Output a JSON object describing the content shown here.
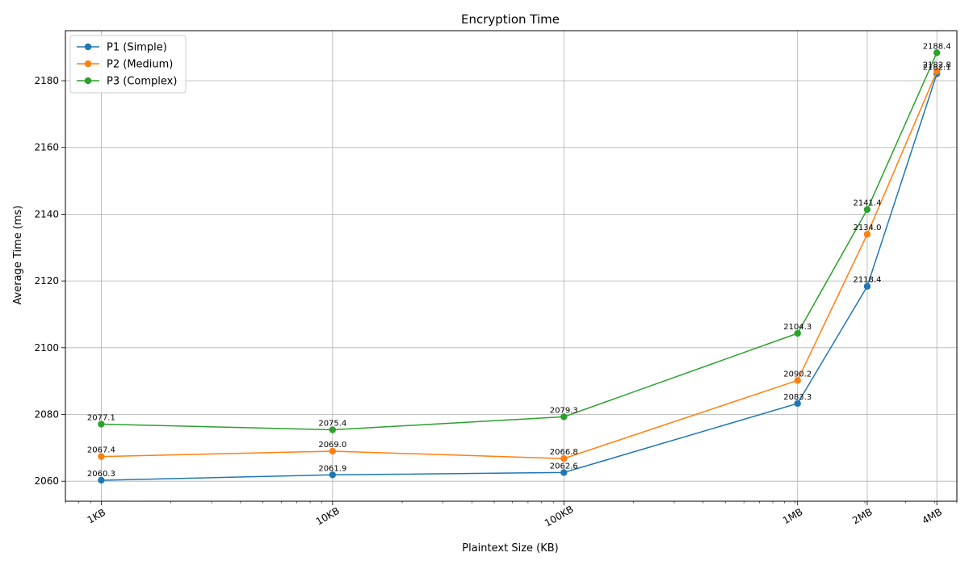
{
  "chart_data": {
    "type": "line",
    "title": "Encryption Time",
    "xlabel": "Plaintext Size (KB)",
    "ylabel": "Average Time (ms)",
    "x_scale": "log",
    "x": [
      1,
      10,
      100,
      1024,
      2048,
      4096
    ],
    "x_tick_labels": [
      "1KB",
      "10KB",
      "100KB",
      "1MB",
      "2MB",
      "4MB"
    ],
    "xlim": [
      0.7,
      5000
    ],
    "ylim": [
      2054,
      2195
    ],
    "y_ticks": [
      2060,
      2080,
      2100,
      2120,
      2140,
      2160,
      2180
    ],
    "grid": true,
    "legend_position": "top-left",
    "series": [
      {
        "name": "P1 (Simple)",
        "color": "#1f77b4",
        "values": [
          2060.3,
          2061.9,
          2062.6,
          2083.3,
          2118.4,
          2182.1
        ]
      },
      {
        "name": "P2 (Medium)",
        "color": "#ff7f0e",
        "values": [
          2067.4,
          2069.0,
          2066.8,
          2090.2,
          2134.0,
          2182.8
        ]
      },
      {
        "name": "P3 (Complex)",
        "color": "#2ca02c",
        "values": [
          2077.1,
          2075.4,
          2079.3,
          2104.3,
          2141.4,
          2188.4
        ]
      }
    ]
  }
}
